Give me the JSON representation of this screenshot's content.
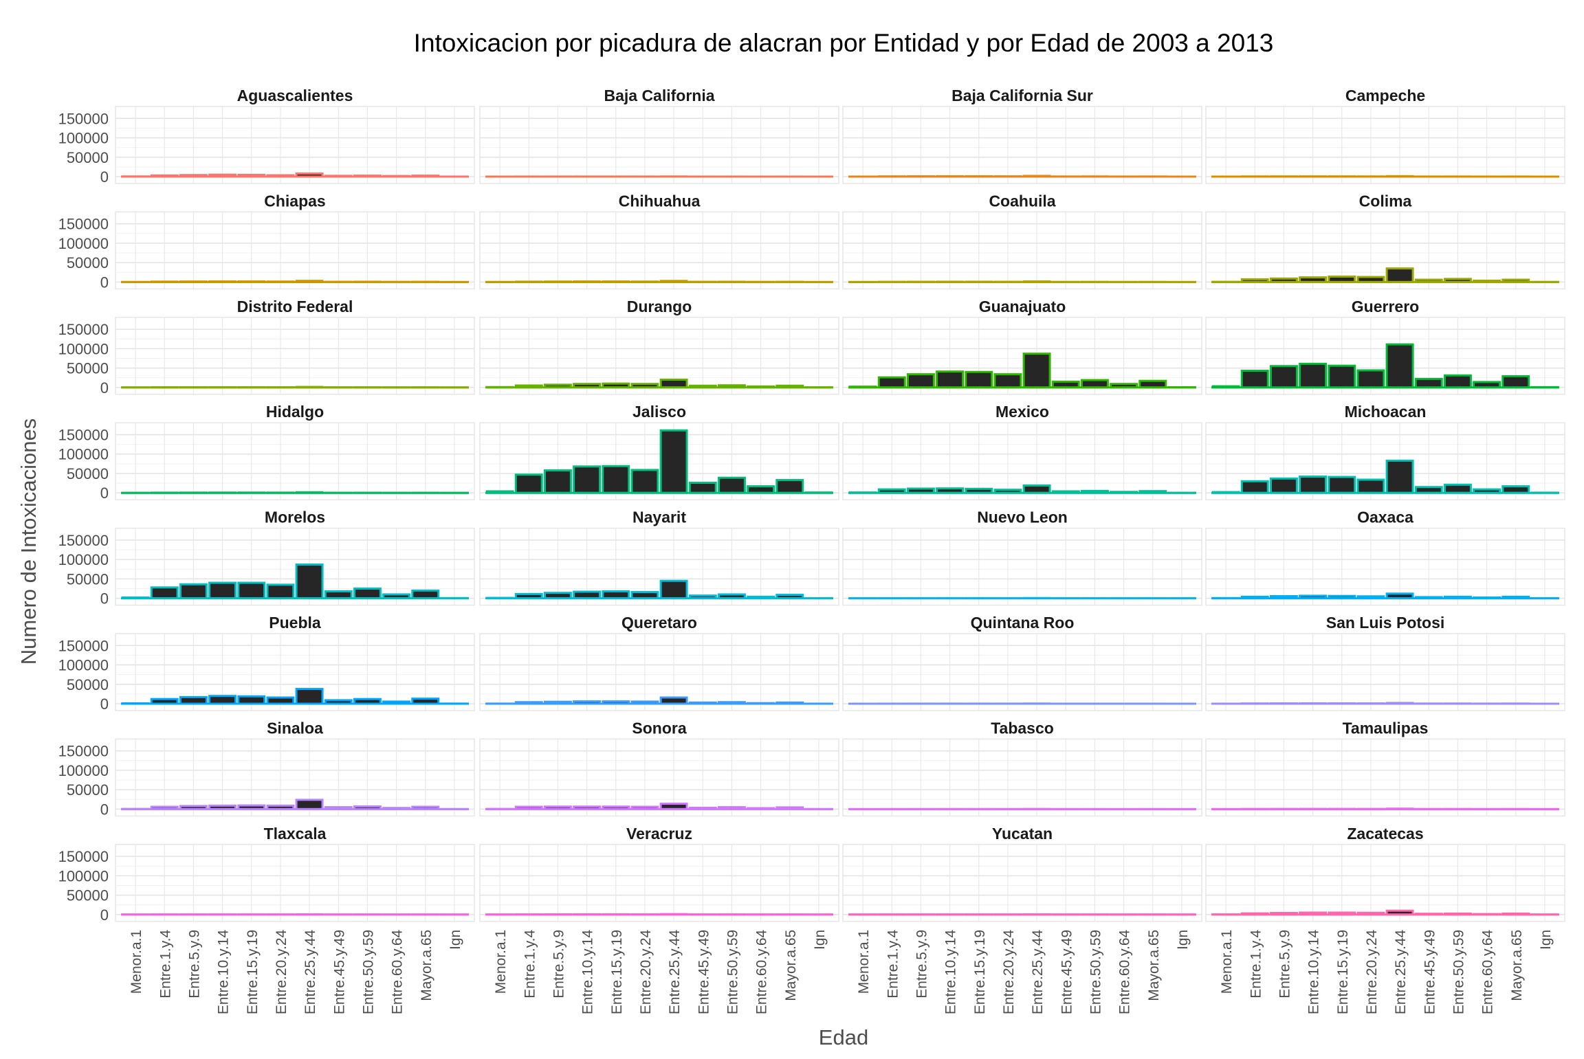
{
  "chart_data": {
    "type": "bar",
    "title": "Intoxicacion por picadura de alacran por Entidad y por Edad  de 2003 a 2013",
    "xlabel": "Edad",
    "ylabel": "Numero de Intoxicaciones",
    "ylim": [
      0,
      170000
    ],
    "y_ticks": [
      0,
      50000,
      100000,
      150000
    ],
    "y_tick_labels": [
      "0",
      "50000",
      "100000",
      "150000"
    ],
    "grid": true,
    "legend": "none",
    "bar_fill": "#262626",
    "categories": [
      "Menor.a.1",
      "Entre.1.y.4",
      "Entre.5.y.9",
      "Entre.10.y.14",
      "Entre.15.y.19",
      "Entre.20.y.24",
      "Entre.25.y.44",
      "Entre.45.y.49",
      "Entre.50.y.59",
      "Entre.60.y.64",
      "Mayor.a.65",
      "Ign"
    ],
    "series": [
      {
        "name": "Aguascalientes",
        "color": "#F8766D",
        "values": [
          500,
          3000,
          4000,
          5000,
          4500,
          3500,
          8000,
          2000,
          2500,
          1500,
          2500,
          100
        ]
      },
      {
        "name": "Baja California",
        "color": "#F47A57",
        "values": [
          50,
          150,
          200,
          220,
          220,
          180,
          400,
          80,
          100,
          50,
          80,
          10
        ]
      },
      {
        "name": "Baja California Sur",
        "color": "#E7851E",
        "values": [
          100,
          600,
          800,
          900,
          900,
          750,
          1800,
          350,
          450,
          200,
          350,
          20
        ]
      },
      {
        "name": "Campeche",
        "color": "#DB8E00",
        "values": [
          80,
          400,
          500,
          550,
          550,
          450,
          1100,
          200,
          250,
          120,
          200,
          15
        ]
      },
      {
        "name": "Chiapas",
        "color": "#CD9600",
        "values": [
          100,
          1000,
          1300,
          1500,
          1500,
          1200,
          3000,
          600,
          750,
          350,
          600,
          30
        ]
      },
      {
        "name": "Chihuahua",
        "color": "#BE9C00",
        "values": [
          100,
          900,
          1200,
          1400,
          1400,
          1100,
          2800,
          550,
          700,
          300,
          550,
          30
        ]
      },
      {
        "name": "Coahuila",
        "color": "#AEA200",
        "values": [
          80,
          500,
          650,
          750,
          750,
          600,
          1500,
          300,
          380,
          180,
          300,
          20
        ]
      },
      {
        "name": "Colima",
        "color": "#9AA800",
        "values": [
          500,
          7000,
          9000,
          12000,
          14000,
          13000,
          35000,
          6000,
          8000,
          3500,
          6000,
          200
        ]
      },
      {
        "name": "Distrito Federal",
        "color": "#83AD00",
        "values": [
          80,
          400,
          500,
          600,
          600,
          500,
          1300,
          250,
          320,
          150,
          250,
          15
        ]
      },
      {
        "name": "Durango",
        "color": "#64B200",
        "values": [
          1000,
          5000,
          7000,
          9000,
          10000,
          9000,
          20000,
          4500,
          5500,
          2500,
          4500,
          200
        ]
      },
      {
        "name": "Guanajuato",
        "color": "#2EB700",
        "values": [
          2000,
          26000,
          34000,
          41000,
          40000,
          34000,
          87000,
          15000,
          19000,
          9000,
          17000,
          500
        ]
      },
      {
        "name": "Guerrero",
        "color": "#00BA38",
        "values": [
          3000,
          43000,
          55000,
          61000,
          56000,
          44000,
          111000,
          22000,
          31000,
          14000,
          29000,
          800
        ]
      },
      {
        "name": "Hidalgo",
        "color": "#00BD5C",
        "values": [
          100,
          500,
          650,
          750,
          750,
          600,
          1500,
          300,
          380,
          180,
          300,
          20
        ]
      },
      {
        "name": "Jalisco",
        "color": "#00BF7D",
        "values": [
          4000,
          47000,
          58000,
          68000,
          69000,
          59000,
          161000,
          26000,
          39000,
          17000,
          33000,
          1000
        ]
      },
      {
        "name": "Mexico",
        "color": "#00C098",
        "values": [
          1000,
          9000,
          11000,
          11500,
          10500,
          8000,
          19000,
          4000,
          5000,
          2500,
          4500,
          200
        ]
      },
      {
        "name": "Michoacan",
        "color": "#00C0AF",
        "values": [
          2000,
          30000,
          37000,
          42000,
          41000,
          34000,
          83000,
          15000,
          21000,
          9000,
          17000,
          500
        ]
      },
      {
        "name": "Morelos",
        "color": "#00BFC4",
        "values": [
          2000,
          28000,
          36000,
          40000,
          40000,
          35000,
          87000,
          18000,
          25000,
          10000,
          20000,
          500
        ]
      },
      {
        "name": "Nayarit",
        "color": "#00BCD8",
        "values": [
          1000,
          11000,
          14000,
          17000,
          18000,
          16000,
          45000,
          7000,
          10000,
          4000,
          9000,
          200
        ]
      },
      {
        "name": "Nuevo Leon",
        "color": "#00B7E9",
        "values": [
          50,
          200,
          250,
          300,
          300,
          250,
          600,
          120,
          150,
          70,
          120,
          10
        ]
      },
      {
        "name": "Oaxaca",
        "color": "#00B0F6",
        "values": [
          500,
          4000,
          5500,
          6500,
          6000,
          5000,
          12000,
          3000,
          4000,
          2000,
          4000,
          100
        ]
      },
      {
        "name": "Puebla",
        "color": "#00A7FF",
        "values": [
          1000,
          12000,
          17000,
          20000,
          19000,
          16000,
          38000,
          9000,
          12000,
          5500,
          13000,
          300
        ]
      },
      {
        "name": "Queretaro",
        "color": "#399DFF",
        "values": [
          300,
          4000,
          5000,
          6000,
          6000,
          5500,
          16000,
          3000,
          4000,
          1500,
          3000,
          100
        ]
      },
      {
        "name": "Quintana Roo",
        "color": "#7D96FF",
        "values": [
          30,
          150,
          200,
          230,
          230,
          200,
          450,
          90,
          110,
          50,
          90,
          5
        ]
      },
      {
        "name": "San Luis Potosi",
        "color": "#9F8CFF",
        "values": [
          100,
          700,
          900,
          1000,
          1000,
          850,
          2000,
          400,
          500,
          250,
          400,
          20
        ]
      },
      {
        "name": "Sinaloa",
        "color": "#B983FF",
        "values": [
          500,
          6000,
          8000,
          9000,
          9500,
          9000,
          24000,
          5000,
          7000,
          3000,
          6000,
          150
        ]
      },
      {
        "name": "Sonora",
        "color": "#CF78FF",
        "values": [
          500,
          6000,
          6500,
          6500,
          6500,
          6000,
          14000,
          3500,
          5000,
          2500,
          4500,
          150
        ]
      },
      {
        "name": "Tabasco",
        "color": "#DE71F9",
        "values": [
          30,
          150,
          200,
          230,
          230,
          200,
          450,
          90,
          110,
          50,
          90,
          5
        ]
      },
      {
        "name": "Tamaulipas",
        "color": "#EC69EF",
        "values": [
          80,
          400,
          500,
          600,
          600,
          500,
          1200,
          250,
          320,
          150,
          250,
          15
        ]
      },
      {
        "name": "Tlaxcala",
        "color": "#F563E3",
        "values": [
          30,
          150,
          200,
          230,
          230,
          200,
          450,
          90,
          110,
          50,
          90,
          5
        ]
      },
      {
        "name": "Veracruz",
        "color": "#FC61D5",
        "values": [
          50,
          350,
          450,
          500,
          500,
          420,
          1000,
          200,
          250,
          120,
          200,
          10
        ]
      },
      {
        "name": "Yucatan",
        "color": "#FF63C2",
        "values": [
          30,
          150,
          200,
          230,
          230,
          200,
          450,
          90,
          110,
          50,
          90,
          5
        ]
      },
      {
        "name": "Zacatecas",
        "color": "#FF67AA",
        "values": [
          300,
          3000,
          4000,
          5000,
          5000,
          4500,
          10000,
          2000,
          2500,
          1200,
          2500,
          100
        ]
      }
    ]
  }
}
